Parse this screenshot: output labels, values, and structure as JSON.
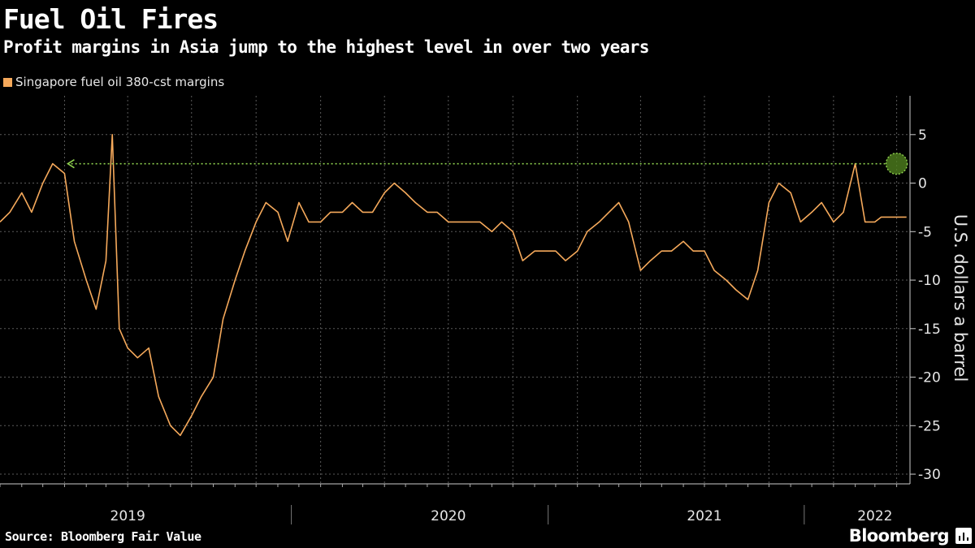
{
  "title": "Fuel Oil Fires",
  "subtitle": "Profit margins in Asia jump to the highest level in over two years",
  "legend": {
    "label": "Singapore fuel oil 380-cst margins",
    "color": "#f5a95b"
  },
  "source": "Source: Bloomberg Fair Value",
  "brand": "Bloomberg",
  "colors": {
    "background": "#000000",
    "series": "#f5a95b",
    "annotation": "#8fd14f",
    "grid": "#5a5a5a"
  },
  "chart_data": {
    "type": "line",
    "ylabel": "U.S. dollars a barrel",
    "ylim": [
      -31,
      9
    ],
    "yticks": [
      5,
      0,
      -5,
      -10,
      -15,
      -20,
      -25,
      -30
    ],
    "y_axis_side": "right",
    "grid": true,
    "legend_position": "top-left",
    "x_range": [
      "2018-10-01",
      "2022-04-20"
    ],
    "x_tick_labels": [
      {
        "label": "2019",
        "date": "2019-04-01"
      },
      {
        "label": "2020",
        "date": "2020-07-01"
      },
      {
        "label": "2021",
        "date": "2021-07-01"
      },
      {
        "label": "2022",
        "date": "2022-03-01"
      }
    ],
    "series": [
      {
        "name": "Singapore fuel oil 380-cst margins",
        "x": [
          "2018-10-01",
          "2018-10-15",
          "2018-11-01",
          "2018-11-15",
          "2018-12-01",
          "2018-12-15",
          "2019-01-01",
          "2019-01-15",
          "2019-02-01",
          "2019-02-15",
          "2019-03-01",
          "2019-03-10",
          "2019-03-20",
          "2019-04-01",
          "2019-04-15",
          "2019-05-01",
          "2019-05-15",
          "2019-06-01",
          "2019-06-15",
          "2019-07-01",
          "2019-07-15",
          "2019-08-01",
          "2019-08-15",
          "2019-09-01",
          "2019-09-15",
          "2019-10-01",
          "2019-10-15",
          "2019-11-01",
          "2019-11-15",
          "2019-12-01",
          "2019-12-15",
          "2020-01-01",
          "2020-01-15",
          "2020-02-01",
          "2020-02-15",
          "2020-03-01",
          "2020-03-15",
          "2020-04-01",
          "2020-04-15",
          "2020-05-01",
          "2020-05-15",
          "2020-06-01",
          "2020-06-15",
          "2020-07-01",
          "2020-07-15",
          "2020-08-01",
          "2020-08-15",
          "2020-09-01",
          "2020-09-15",
          "2020-10-01",
          "2020-10-15",
          "2020-11-01",
          "2020-11-15",
          "2020-12-01",
          "2020-12-15",
          "2021-01-01",
          "2021-01-15",
          "2021-02-01",
          "2021-02-15",
          "2021-03-01",
          "2021-03-15",
          "2021-04-01",
          "2021-04-15",
          "2021-05-01",
          "2021-05-15",
          "2021-06-01",
          "2021-06-15",
          "2021-07-01",
          "2021-07-15",
          "2021-08-01",
          "2021-08-15",
          "2021-09-01",
          "2021-09-15",
          "2021-10-01",
          "2021-10-15",
          "2021-11-01",
          "2021-11-15",
          "2021-12-01",
          "2021-12-15",
          "2022-01-01",
          "2022-01-15",
          "2022-02-01",
          "2022-02-15",
          "2022-03-01",
          "2022-03-10",
          "2022-03-20",
          "2022-04-01",
          "2022-04-10",
          "2022-04-15"
        ],
        "y": [
          -4,
          -3,
          -1,
          -3,
          0,
          2,
          1,
          -6,
          -10,
          -13,
          -8,
          5,
          -15,
          -17,
          -18,
          -17,
          -22,
          -25,
          -26,
          -24,
          -22,
          -20,
          -14,
          -10,
          -7,
          -4,
          -2,
          -3,
          -6,
          -2,
          -4,
          -4,
          -3,
          -3,
          -2,
          -3,
          -3,
          -1,
          0,
          -1,
          -2,
          -3,
          -3,
          -4,
          -4,
          -4,
          -4,
          -5,
          -4,
          -5,
          -8,
          -7,
          -7,
          -7,
          -8,
          -7,
          -5,
          -4,
          -3,
          -2,
          -4,
          -9,
          -8,
          -7,
          -7,
          -6,
          -7,
          -7,
          -9,
          -10,
          -11,
          -12,
          -9,
          -2,
          0,
          -1,
          -4,
          -3,
          -2,
          -4,
          -3,
          2,
          -4,
          -4,
          -3.5,
          -3.5,
          -3.5,
          -3.5,
          -3.5
        ]
      }
    ],
    "annotation": {
      "type": "dotted-arrow",
      "from_date": "2022-04-01",
      "to_date": "2019-01-01",
      "value": 2
    }
  }
}
